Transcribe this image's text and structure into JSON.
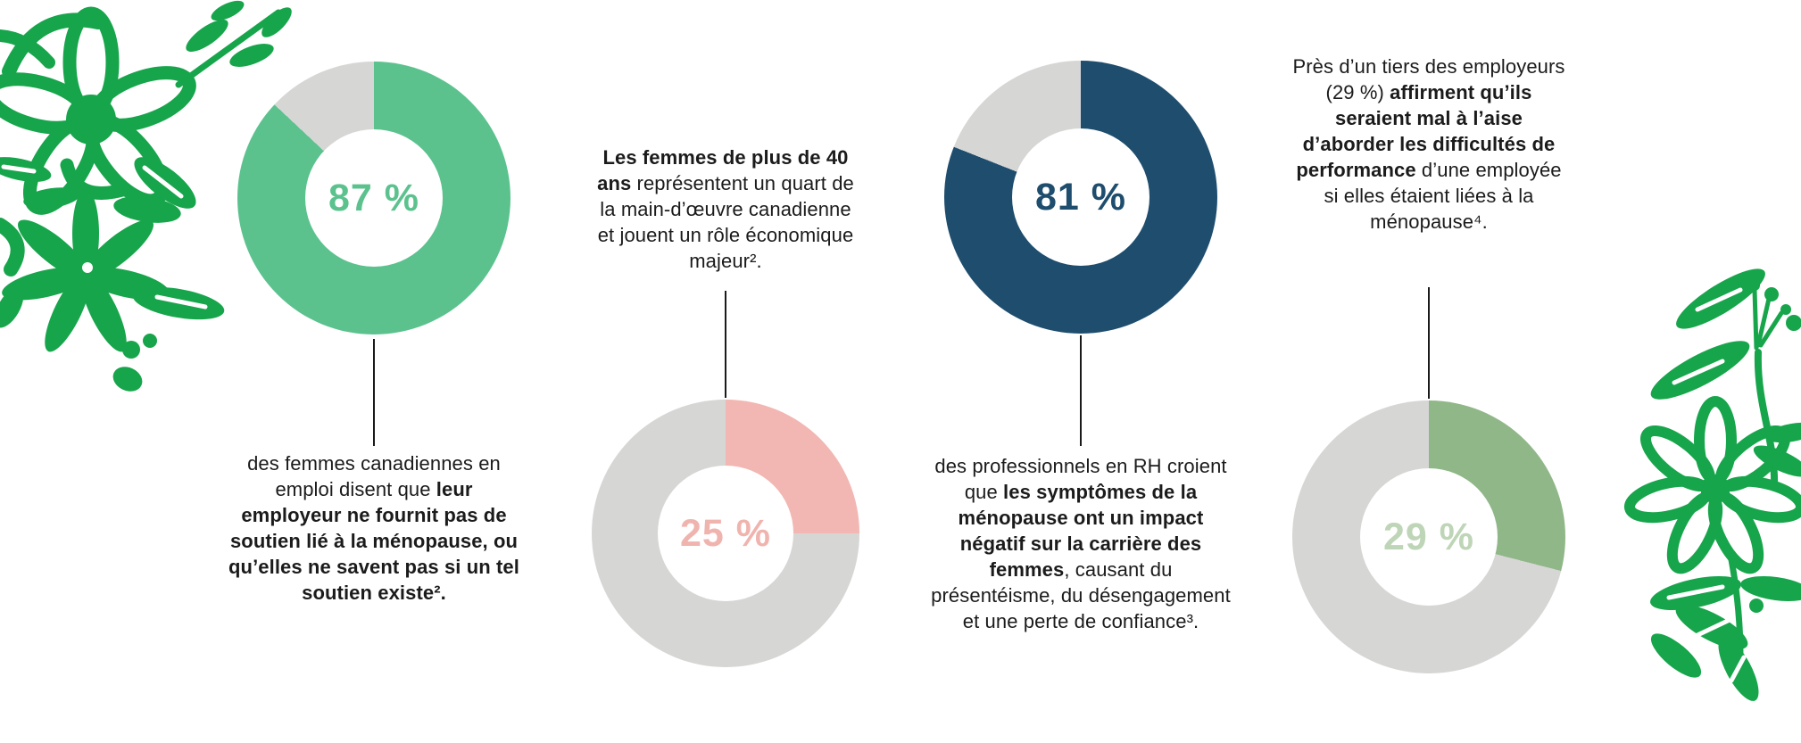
{
  "infographic": {
    "background": "#FFFFFF",
    "text_color": "#1B1B1B",
    "connector_color": "#1A1A1A"
  },
  "decor": {
    "flower_color": "#17A54B"
  },
  "chart_data": [
    {
      "type": "donut",
      "value": 87,
      "unit": "%",
      "label": "87 %",
      "start_angle": "top",
      "direction": "clockwise",
      "fill_color": "#5BC28E",
      "track_color": "#D6D6D5",
      "label_color": "#5BC28E",
      "arrangement": "chart-above-text",
      "caption": [
        {
          "text": "des femmes canadiennes en emploi disent que ",
          "bold": false
        },
        {
          "text": "leur employeur ne fournit pas de soutien lié à la ménopause, ou qu’elles ne savent pas si un tel soutien existe².",
          "bold": true
        }
      ]
    },
    {
      "type": "donut",
      "value": 25,
      "unit": "%",
      "label": "25 %",
      "start_angle": "top",
      "direction": "clockwise",
      "fill_color": "#F2B7B2",
      "track_color": "#D6D6D5",
      "label_color": "#F0B4AF",
      "arrangement": "text-above-chart",
      "caption": [
        {
          "text": "Les femmes de plus de 40 ans",
          "bold": true
        },
        {
          "text": " représentent un quart de la main-d’œuvre canadienne et jouent un rôle économique majeur².",
          "bold": false
        }
      ]
    },
    {
      "type": "donut",
      "value": 81,
      "unit": "%",
      "label": "81 %",
      "start_angle": "top",
      "direction": "clockwise",
      "fill_color": "#1E4D6E",
      "track_color": "#D6D6D5",
      "label_color": "#1E4D6E",
      "arrangement": "chart-above-text",
      "caption": [
        {
          "text": "des professionnels en RH croient que ",
          "bold": false
        },
        {
          "text": "les symptômes de la ménopause ont un impact négatif sur la carrière des femmes",
          "bold": true
        },
        {
          "text": ", causant du présentéisme, du désengagement et une perte de confiance³.",
          "bold": false
        }
      ]
    },
    {
      "type": "donut",
      "value": 29,
      "unit": "%",
      "label": "29 %",
      "start_angle": "top",
      "direction": "clockwise",
      "fill_color": "#8FB787",
      "track_color": "#D6D6D5",
      "label_color": "#BED5B7",
      "arrangement": "text-above-chart",
      "caption": [
        {
          "text": "Près d’un tiers des employeurs (29 %) ",
          "bold": false
        },
        {
          "text": "affirment qu’ils seraient mal à l’aise d’aborder les difficultés de performance",
          "bold": true
        },
        {
          "text": " d’une employée si elles étaient liées à la ménopause⁴.",
          "bold": false
        }
      ]
    }
  ]
}
